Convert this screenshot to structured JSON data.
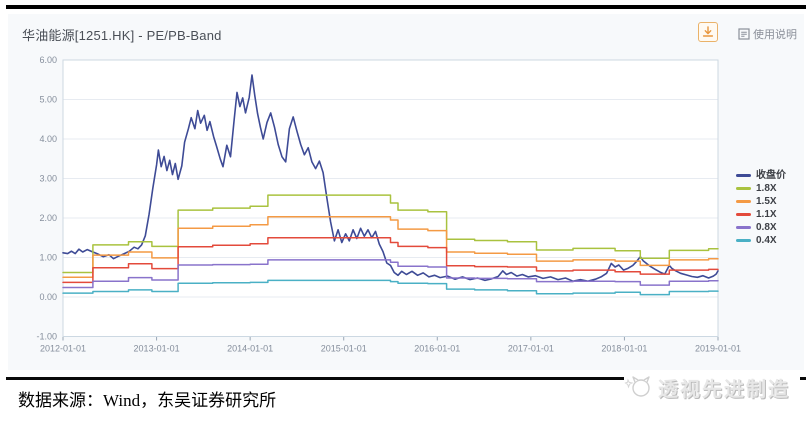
{
  "header": {
    "title": "华油能源[1251.HK] - PE/PB-Band",
    "help_label": "使用说明"
  },
  "chart_data": {
    "type": "line",
    "title": "华油能源[1251.HK] - PE/PB-Band",
    "xlabel": "",
    "ylabel": "",
    "grid": true,
    "legend_position": "right",
    "x_axis": {
      "range_years": [
        2012,
        2019
      ],
      "ticks": [
        "2012-01-01",
        "2013-01-01",
        "2014-01-01",
        "2015-01-01",
        "2016-01-01",
        "2017-01-01",
        "2018-01-01",
        "2019-01-01"
      ]
    },
    "y_axis": {
      "range": [
        -1,
        6
      ],
      "ticks": [
        {
          "label": "6.00",
          "value": 6
        },
        {
          "label": "5.00",
          "value": 5
        },
        {
          "label": "4.00",
          "value": 4
        },
        {
          "label": "3.00",
          "value": 3
        },
        {
          "label": "2.00",
          "value": 2
        },
        {
          "label": "1.00",
          "value": 1
        },
        {
          "label": "0.00",
          "value": 0
        },
        {
          "label": "-1.00",
          "value": -1
        }
      ]
    },
    "series": [
      {
        "id": "close-price",
        "name": "收盘价",
        "color": "#3e4b96",
        "style": "line",
        "width": 1.6,
        "points": [
          [
            2012.0,
            1.12
          ],
          [
            2012.05,
            1.1
          ],
          [
            2012.09,
            1.16
          ],
          [
            2012.13,
            1.1
          ],
          [
            2012.17,
            1.21
          ],
          [
            2012.21,
            1.14
          ],
          [
            2012.26,
            1.2
          ],
          [
            2012.31,
            1.15
          ],
          [
            2012.37,
            1.09
          ],
          [
            2012.43,
            1.02
          ],
          [
            2012.49,
            1.07
          ],
          [
            2012.54,
            0.97
          ],
          [
            2012.59,
            1.03
          ],
          [
            2012.65,
            1.09
          ],
          [
            2012.71,
            1.16
          ],
          [
            2012.76,
            1.26
          ],
          [
            2012.8,
            1.22
          ],
          [
            2012.84,
            1.32
          ],
          [
            2012.88,
            1.55
          ],
          [
            2012.92,
            2.1
          ],
          [
            2012.96,
            2.75
          ],
          [
            2013.0,
            3.35
          ],
          [
            2013.02,
            3.72
          ],
          [
            2013.05,
            3.3
          ],
          [
            2013.08,
            3.56
          ],
          [
            2013.11,
            3.2
          ],
          [
            2013.14,
            3.46
          ],
          [
            2013.17,
            3.1
          ],
          [
            2013.2,
            3.38
          ],
          [
            2013.23,
            2.98
          ],
          [
            2013.27,
            3.32
          ],
          [
            2013.3,
            3.92
          ],
          [
            2013.34,
            4.26
          ],
          [
            2013.37,
            4.54
          ],
          [
            2013.41,
            4.26
          ],
          [
            2013.44,
            4.72
          ],
          [
            2013.47,
            4.4
          ],
          [
            2013.51,
            4.6
          ],
          [
            2013.54,
            4.22
          ],
          [
            2013.57,
            4.44
          ],
          [
            2013.61,
            4.06
          ],
          [
            2013.64,
            3.82
          ],
          [
            2013.68,
            3.5
          ],
          [
            2013.71,
            3.3
          ],
          [
            2013.75,
            3.84
          ],
          [
            2013.79,
            3.55
          ],
          [
            2013.83,
            4.5
          ],
          [
            2013.86,
            5.18
          ],
          [
            2013.89,
            4.82
          ],
          [
            2013.92,
            5.04
          ],
          [
            2013.95,
            4.66
          ],
          [
            2013.99,
            5.05
          ],
          [
            2014.02,
            5.62
          ],
          [
            2014.05,
            5.1
          ],
          [
            2014.08,
            4.64
          ],
          [
            2014.11,
            4.3
          ],
          [
            2014.14,
            4.0
          ],
          [
            2014.18,
            4.42
          ],
          [
            2014.22,
            4.66
          ],
          [
            2014.26,
            4.3
          ],
          [
            2014.3,
            3.86
          ],
          [
            2014.34,
            3.55
          ],
          [
            2014.38,
            3.42
          ],
          [
            2014.42,
            4.26
          ],
          [
            2014.46,
            4.56
          ],
          [
            2014.5,
            4.2
          ],
          [
            2014.54,
            3.86
          ],
          [
            2014.58,
            3.6
          ],
          [
            2014.62,
            3.78
          ],
          [
            2014.66,
            3.42
          ],
          [
            2014.7,
            3.25
          ],
          [
            2014.74,
            3.44
          ],
          [
            2014.78,
            3.15
          ],
          [
            2014.82,
            2.5
          ],
          [
            2014.86,
            1.9
          ],
          [
            2014.9,
            1.42
          ],
          [
            2014.94,
            1.7
          ],
          [
            2014.98,
            1.38
          ],
          [
            2015.02,
            1.6
          ],
          [
            2015.06,
            1.42
          ],
          [
            2015.1,
            1.7
          ],
          [
            2015.14,
            1.48
          ],
          [
            2015.18,
            1.74
          ],
          [
            2015.22,
            1.54
          ],
          [
            2015.26,
            1.7
          ],
          [
            2015.3,
            1.5
          ],
          [
            2015.34,
            1.66
          ],
          [
            2015.38,
            1.34
          ],
          [
            2015.42,
            1.15
          ],
          [
            2015.46,
            0.86
          ],
          [
            2015.5,
            0.8
          ],
          [
            2015.54,
            0.62
          ],
          [
            2015.58,
            0.55
          ],
          [
            2015.62,
            0.65
          ],
          [
            2015.67,
            0.57
          ],
          [
            2015.73,
            0.65
          ],
          [
            2015.79,
            0.55
          ],
          [
            2015.85,
            0.61
          ],
          [
            2015.91,
            0.51
          ],
          [
            2015.97,
            0.55
          ],
          [
            2016.03,
            0.49
          ],
          [
            2016.11,
            0.53
          ],
          [
            2016.19,
            0.45
          ],
          [
            2016.27,
            0.51
          ],
          [
            2016.35,
            0.44
          ],
          [
            2016.43,
            0.48
          ],
          [
            2016.51,
            0.42
          ],
          [
            2016.58,
            0.46
          ],
          [
            2016.65,
            0.52
          ],
          [
            2016.7,
            0.66
          ],
          [
            2016.74,
            0.57
          ],
          [
            2016.79,
            0.62
          ],
          [
            2016.85,
            0.53
          ],
          [
            2016.91,
            0.57
          ],
          [
            2016.97,
            0.51
          ],
          [
            2017.05,
            0.54
          ],
          [
            2017.13,
            0.47
          ],
          [
            2017.21,
            0.51
          ],
          [
            2017.29,
            0.44
          ],
          [
            2017.37,
            0.48
          ],
          [
            2017.45,
            0.4
          ],
          [
            2017.53,
            0.44
          ],
          [
            2017.61,
            0.4
          ],
          [
            2017.69,
            0.45
          ],
          [
            2017.75,
            0.51
          ],
          [
            2017.81,
            0.6
          ],
          [
            2017.86,
            0.85
          ],
          [
            2017.9,
            0.76
          ],
          [
            2017.94,
            0.81
          ],
          [
            2017.99,
            0.68
          ],
          [
            2018.04,
            0.73
          ],
          [
            2018.09,
            0.8
          ],
          [
            2018.13,
            0.9
          ],
          [
            2018.17,
            1.02
          ],
          [
            2018.2,
            0.92
          ],
          [
            2018.24,
            0.84
          ],
          [
            2018.28,
            0.77
          ],
          [
            2018.33,
            0.7
          ],
          [
            2018.38,
            0.63
          ],
          [
            2018.43,
            0.58
          ],
          [
            2018.48,
            0.8
          ],
          [
            2018.51,
            0.72
          ],
          [
            2018.55,
            0.66
          ],
          [
            2018.6,
            0.6
          ],
          [
            2018.66,
            0.56
          ],
          [
            2018.72,
            0.52
          ],
          [
            2018.78,
            0.5
          ],
          [
            2018.84,
            0.54
          ],
          [
            2018.9,
            0.48
          ],
          [
            2018.95,
            0.53
          ],
          [
            2018.98,
            0.58
          ],
          [
            2019.0,
            0.66
          ]
        ]
      },
      {
        "id": "band-1-8x",
        "name": "1.8X",
        "color": "#a9c23f",
        "style": "step",
        "width": 1.5,
        "points": [
          [
            2012.0,
            0.62
          ],
          [
            2012.32,
            1.32
          ],
          [
            2012.7,
            1.4
          ],
          [
            2012.95,
            1.28
          ],
          [
            2013.23,
            2.2
          ],
          [
            2013.6,
            2.25
          ],
          [
            2014.0,
            2.3
          ],
          [
            2014.19,
            2.58
          ],
          [
            2015.5,
            2.38
          ],
          [
            2015.58,
            2.2
          ],
          [
            2015.9,
            2.16
          ],
          [
            2016.1,
            1.46
          ],
          [
            2016.4,
            1.43
          ],
          [
            2016.75,
            1.4
          ],
          [
            2017.06,
            1.19
          ],
          [
            2017.45,
            1.23
          ],
          [
            2017.9,
            1.17
          ],
          [
            2018.17,
            0.98
          ],
          [
            2018.48,
            1.18
          ],
          [
            2018.9,
            1.22
          ]
        ]
      },
      {
        "id": "band-1-5x",
        "name": "1.5X",
        "color": "#f49a44",
        "style": "step",
        "width": 1.5,
        "points": [
          [
            2012.0,
            0.5
          ],
          [
            2012.32,
            1.06
          ],
          [
            2012.7,
            1.14
          ],
          [
            2012.95,
            0.99
          ],
          [
            2013.23,
            1.74
          ],
          [
            2013.6,
            1.79
          ],
          [
            2014.0,
            1.83
          ],
          [
            2014.19,
            2.03
          ],
          [
            2015.5,
            1.95
          ],
          [
            2015.58,
            1.72
          ],
          [
            2015.9,
            1.68
          ],
          [
            2016.1,
            1.14
          ],
          [
            2016.4,
            1.11
          ],
          [
            2016.75,
            1.08
          ],
          [
            2017.06,
            0.91
          ],
          [
            2017.45,
            0.94
          ],
          [
            2017.9,
            0.91
          ],
          [
            2018.17,
            0.8
          ],
          [
            2018.48,
            0.94
          ],
          [
            2018.9,
            0.97
          ]
        ]
      },
      {
        "id": "band-1-1x",
        "name": "1.1X",
        "color": "#e34a3b",
        "style": "step",
        "width": 1.5,
        "points": [
          [
            2012.0,
            0.37
          ],
          [
            2012.32,
            0.74
          ],
          [
            2012.7,
            0.84
          ],
          [
            2012.95,
            0.72
          ],
          [
            2013.23,
            1.27
          ],
          [
            2013.6,
            1.31
          ],
          [
            2014.0,
            1.35
          ],
          [
            2014.19,
            1.5
          ],
          [
            2015.5,
            1.38
          ],
          [
            2015.58,
            1.28
          ],
          [
            2015.9,
            1.25
          ],
          [
            2016.1,
            0.79
          ],
          [
            2016.4,
            0.77
          ],
          [
            2016.75,
            0.76
          ],
          [
            2017.06,
            0.66
          ],
          [
            2017.45,
            0.68
          ],
          [
            2017.9,
            0.64
          ],
          [
            2018.17,
            0.58
          ],
          [
            2018.48,
            0.68
          ],
          [
            2018.9,
            0.7
          ]
        ]
      },
      {
        "id": "band-0-8x",
        "name": "0.8X",
        "color": "#8973cb",
        "style": "step",
        "width": 1.5,
        "points": [
          [
            2012.0,
            0.24
          ],
          [
            2012.32,
            0.4
          ],
          [
            2012.7,
            0.49
          ],
          [
            2012.95,
            0.43
          ],
          [
            2013.23,
            0.81
          ],
          [
            2013.6,
            0.82
          ],
          [
            2014.0,
            0.83
          ],
          [
            2014.19,
            0.94
          ],
          [
            2015.5,
            0.88
          ],
          [
            2015.58,
            0.78
          ],
          [
            2015.9,
            0.76
          ],
          [
            2016.1,
            0.48
          ],
          [
            2016.4,
            0.47
          ],
          [
            2016.75,
            0.46
          ],
          [
            2017.06,
            0.39
          ],
          [
            2017.45,
            0.4
          ],
          [
            2017.9,
            0.39
          ],
          [
            2018.17,
            0.3
          ],
          [
            2018.48,
            0.4
          ],
          [
            2018.9,
            0.41
          ]
        ]
      },
      {
        "id": "band-0-4x",
        "name": "0.4X",
        "color": "#4ab0c5",
        "style": "step",
        "width": 1.5,
        "points": [
          [
            2012.0,
            0.1
          ],
          [
            2012.32,
            0.14
          ],
          [
            2012.7,
            0.18
          ],
          [
            2012.95,
            0.14
          ],
          [
            2013.23,
            0.35
          ],
          [
            2013.6,
            0.36
          ],
          [
            2014.0,
            0.37
          ],
          [
            2014.19,
            0.42
          ],
          [
            2015.5,
            0.39
          ],
          [
            2015.58,
            0.35
          ],
          [
            2015.9,
            0.34
          ],
          [
            2016.1,
            0.2
          ],
          [
            2016.4,
            0.18
          ],
          [
            2016.75,
            0.16
          ],
          [
            2017.06,
            0.08
          ],
          [
            2017.45,
            0.1
          ],
          [
            2017.9,
            0.12
          ],
          [
            2018.17,
            0.06
          ],
          [
            2018.48,
            0.14
          ],
          [
            2018.9,
            0.15
          ]
        ]
      }
    ]
  },
  "footer": {
    "source": "数据来源：Wind，东吴证券研究所",
    "logo_text": "透视先进制造"
  }
}
